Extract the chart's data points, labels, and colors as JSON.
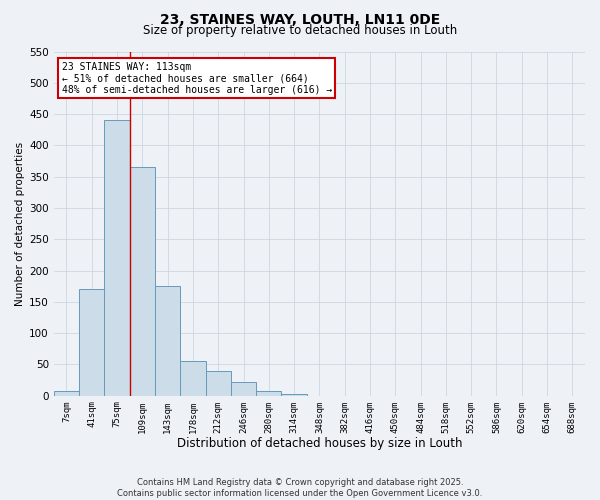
{
  "title": "23, STAINES WAY, LOUTH, LN11 0DE",
  "subtitle": "Size of property relative to detached houses in Louth",
  "xlabel": "Distribution of detached houses by size in Louth",
  "ylabel": "Number of detached properties",
  "categories": [
    "7sqm",
    "41sqm",
    "75sqm",
    "109sqm",
    "143sqm",
    "178sqm",
    "212sqm",
    "246sqm",
    "280sqm",
    "314sqm",
    "348sqm",
    "382sqm",
    "416sqm",
    "450sqm",
    "484sqm",
    "518sqm",
    "552sqm",
    "586sqm",
    "620sqm",
    "654sqm",
    "688sqm"
  ],
  "values": [
    8,
    170,
    440,
    365,
    176,
    55,
    40,
    22,
    8,
    2,
    0,
    0,
    0,
    0,
    0,
    0,
    0,
    0,
    0,
    0,
    0
  ],
  "bar_color": "#ccdce8",
  "bar_edge_color": "#6699bb",
  "ylim": [
    0,
    550
  ],
  "yticks": [
    0,
    50,
    100,
    150,
    200,
    250,
    300,
    350,
    400,
    450,
    500,
    550
  ],
  "vline_x": 3,
  "vline_color": "#cc0000",
  "annotation_text": "23 STAINES WAY: 113sqm\n← 51% of detached houses are smaller (664)\n48% of semi-detached houses are larger (616) →",
  "annotation_box_color": "#cc0000",
  "footer_line1": "Contains HM Land Registry data © Crown copyright and database right 2025.",
  "footer_line2": "Contains public sector information licensed under the Open Government Licence v3.0.",
  "background_color": "#eef2f7",
  "grid_color": "#c5d0de"
}
